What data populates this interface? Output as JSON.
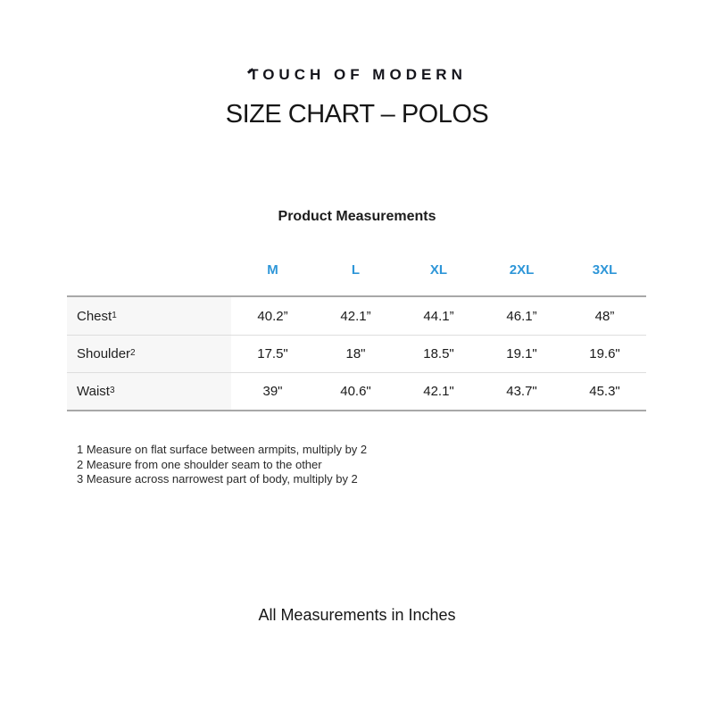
{
  "brand": {
    "name": "TOUCH OF MODERN"
  },
  "page": {
    "title": "SIZE CHART – POLOS",
    "section_title": "Product Measurements",
    "footer_note": "All Measurements in Inches"
  },
  "size_chart": {
    "accent_color": "#2E96D8",
    "columns": [
      "M",
      "L",
      "XL",
      "2XL",
      "3XL"
    ],
    "rows": [
      {
        "label": "Chest",
        "sup": "1",
        "values": [
          "40.2”",
          "42.1”",
          "44.1”",
          "46.1”",
          "48”"
        ]
      },
      {
        "label": "Shoulder",
        "sup": "2",
        "values": [
          "17.5\"",
          "18\"",
          "18.5\"",
          "19.1\"",
          "19.6\""
        ]
      },
      {
        "label": "Waist",
        "sup": "3",
        "values": [
          "39\"",
          "40.6\"",
          "42.1\"",
          "43.7\"",
          "45.3\""
        ]
      }
    ],
    "footnotes": [
      "1 Measure on flat surface between armpits, multiply by 2",
      "2 Measure from one shoulder seam to the other",
      "3 Measure across narrowest part of body, multiply by 2"
    ]
  }
}
